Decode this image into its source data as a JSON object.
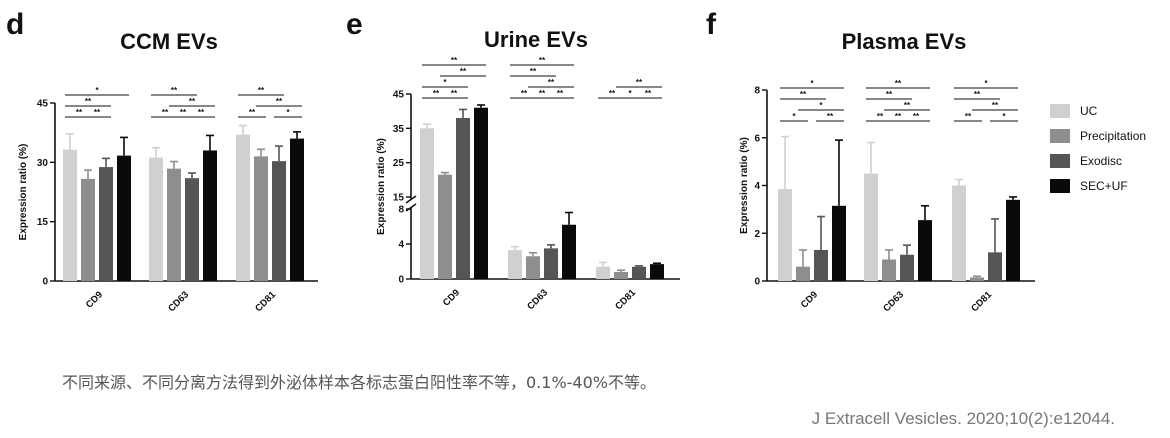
{
  "legend": [
    "UC",
    "Precipitation",
    "Exodisc",
    "SEC+UF"
  ],
  "colors": {
    "UC": "#d0d0d0",
    "Precipitation": "#8e8e8e",
    "Exodisc": "#555555",
    "SEC+UF": "#0a0a0a"
  },
  "caption": "不同来源、不同分离方法得到外泌体样本各标志蛋白阳性率不等，0.1%-40%不等。",
  "citation": "J Extracell Vesicles. 2020;10(2):e12044.",
  "chart_data": [
    {
      "panel": "d",
      "type": "bar",
      "title": "CCM EVs",
      "ylabel": "Expression ratio (%)",
      "xlabel": "",
      "categories": [
        "CD9",
        "CD63",
        "CD81"
      ],
      "ylim": [
        0,
        45
      ],
      "yticks": [
        0,
        15,
        30,
        45
      ],
      "series": [
        {
          "name": "UC",
          "values": [
            33.2,
            31.2,
            37.0
          ],
          "errors": [
            4.0,
            2.5,
            2.3
          ]
        },
        {
          "name": "Precipitation",
          "values": [
            25.8,
            28.4,
            31.5
          ],
          "errors": [
            2.2,
            1.8,
            1.8
          ]
        },
        {
          "name": "Exodisc",
          "values": [
            28.8,
            26.0,
            30.3
          ],
          "errors": [
            2.2,
            1.3,
            3.8
          ]
        },
        {
          "name": "SEC+UF",
          "values": [
            31.7,
            33.0,
            36.0
          ],
          "errors": [
            4.6,
            3.8,
            1.7
          ]
        }
      ],
      "significance": [
        {
          "group": 0,
          "a": 0,
          "b": 3,
          "label": "*"
        },
        {
          "group": 0,
          "a": 0,
          "b": 2,
          "label": "**"
        },
        {
          "group": 0,
          "a": 0,
          "b": 1,
          "label": "**"
        },
        {
          "group": 0,
          "a": 1,
          "b": 2,
          "label": "**"
        },
        {
          "group": 1,
          "a": 1,
          "b": 3,
          "label": "**"
        },
        {
          "group": 1,
          "a": 0,
          "b": 2,
          "label": "**"
        },
        {
          "group": 1,
          "a": 0,
          "b": 1,
          "label": "**"
        },
        {
          "group": 1,
          "a": 1,
          "b": 2,
          "label": "**"
        },
        {
          "group": 1,
          "a": 2,
          "b": 3,
          "label": "**"
        },
        {
          "group": 2,
          "a": 1,
          "b": 3,
          "label": "**"
        },
        {
          "group": 2,
          "a": 0,
          "b": 2,
          "label": "**"
        },
        {
          "group": 2,
          "a": 0,
          "b": 1,
          "label": "**"
        },
        {
          "group": 2,
          "a": 2,
          "b": 3,
          "label": "*"
        }
      ]
    },
    {
      "panel": "e",
      "type": "bar",
      "title": "Urine EVs",
      "ylabel": "Expression ratio (%)",
      "xlabel": "",
      "categories": [
        "CD9",
        "CD63",
        "CD81"
      ],
      "broken_axis": {
        "lower": [
          0,
          8
        ],
        "upper": [
          15,
          45
        ]
      },
      "yticks": [
        0,
        4,
        8,
        15,
        25,
        35,
        45
      ],
      "series": [
        {
          "name": "UC",
          "values": [
            35.0,
            3.3,
            1.4
          ],
          "errors": [
            1.2,
            0.4,
            0.5
          ]
        },
        {
          "name": "Precipitation",
          "values": [
            21.5,
            2.6,
            0.8
          ],
          "errors": [
            0.6,
            0.4,
            0.2
          ]
        },
        {
          "name": "Exodisc",
          "values": [
            38.0,
            3.5,
            1.4
          ],
          "errors": [
            2.5,
            0.4,
            0.1
          ]
        },
        {
          "name": "SEC+UF",
          "values": [
            41.0,
            6.2,
            1.7
          ],
          "errors": [
            0.8,
            1.4,
            0.1
          ]
        }
      ],
      "significance": [
        {
          "group": 0,
          "a": 0,
          "b": 3,
          "label": "**"
        },
        {
          "group": 0,
          "a": 0,
          "b": 2,
          "label": "*"
        },
        {
          "group": 0,
          "a": 0,
          "b": 1,
          "label": "**"
        },
        {
          "group": 0,
          "a": 1,
          "b": 3,
          "label": "**"
        },
        {
          "group": 0,
          "a": 1,
          "b": 2,
          "label": "**"
        },
        {
          "group": 1,
          "a": 0,
          "b": 3,
          "label": "**"
        },
        {
          "group": 1,
          "a": 1,
          "b": 3,
          "label": "**"
        },
        {
          "group": 1,
          "a": 0,
          "b": 2,
          "label": "**"
        },
        {
          "group": 1,
          "a": 0,
          "b": 1,
          "label": "**"
        },
        {
          "group": 1,
          "a": 1,
          "b": 2,
          "label": "**"
        },
        {
          "group": 1,
          "a": 2,
          "b": 3,
          "label": "**"
        },
        {
          "group": 2,
          "a": 1,
          "b": 3,
          "label": "**"
        },
        {
          "group": 2,
          "a": 0,
          "b": 1,
          "label": "**"
        },
        {
          "group": 2,
          "a": 1,
          "b": 2,
          "label": "*"
        },
        {
          "group": 2,
          "a": 2,
          "b": 3,
          "label": "**"
        }
      ]
    },
    {
      "panel": "f",
      "type": "bar",
      "title": "Plasma EVs",
      "ylabel": "Expression ratio (%)",
      "xlabel": "",
      "categories": [
        "CD9",
        "CD63",
        "CD81"
      ],
      "ylim": [
        0,
        8
      ],
      "yticks": [
        0,
        2,
        4,
        6,
        8
      ],
      "series": [
        {
          "name": "UC",
          "values": [
            3.85,
            4.5,
            4.0
          ],
          "errors": [
            2.2,
            1.3,
            0.25
          ]
        },
        {
          "name": "Precipitation",
          "values": [
            0.6,
            0.9,
            0.15
          ],
          "errors": [
            0.7,
            0.4,
            0.05
          ]
        },
        {
          "name": "Exodisc",
          "values": [
            1.3,
            1.1,
            1.2
          ],
          "errors": [
            1.4,
            0.4,
            1.4
          ]
        },
        {
          "name": "SEC+UF",
          "values": [
            3.15,
            2.55,
            3.4
          ],
          "errors": [
            2.75,
            0.6,
            0.12
          ]
        }
      ],
      "significance": [
        {
          "group": 0,
          "a": 0,
          "b": 3,
          "label": "*"
        },
        {
          "group": 0,
          "a": 0,
          "b": 1,
          "label": "*"
        },
        {
          "group": 0,
          "a": 1,
          "b": 3,
          "label": "*"
        },
        {
          "group": 0,
          "a": 0,
          "b": 2,
          "label": "**"
        },
        {
          "group": 0,
          "a": 2,
          "b": 3,
          "label": "**"
        },
        {
          "group": 1,
          "a": 0,
          "b": 3,
          "label": "**"
        },
        {
          "group": 1,
          "a": 1,
          "b": 3,
          "label": "**"
        },
        {
          "group": 1,
          "a": 0,
          "b": 2,
          "label": "**"
        },
        {
          "group": 1,
          "a": 0,
          "b": 1,
          "label": "**"
        },
        {
          "group": 1,
          "a": 1,
          "b": 2,
          "label": "**"
        },
        {
          "group": 1,
          "a": 2,
          "b": 3,
          "label": "**"
        },
        {
          "group": 2,
          "a": 0,
          "b": 3,
          "label": "*"
        },
        {
          "group": 2,
          "a": 0,
          "b": 1,
          "label": "**"
        },
        {
          "group": 2,
          "a": 1,
          "b": 3,
          "label": "**"
        },
        {
          "group": 2,
          "a": 0,
          "b": 2,
          "label": "**"
        },
        {
          "group": 2,
          "a": 2,
          "b": 3,
          "label": "*"
        }
      ]
    }
  ]
}
